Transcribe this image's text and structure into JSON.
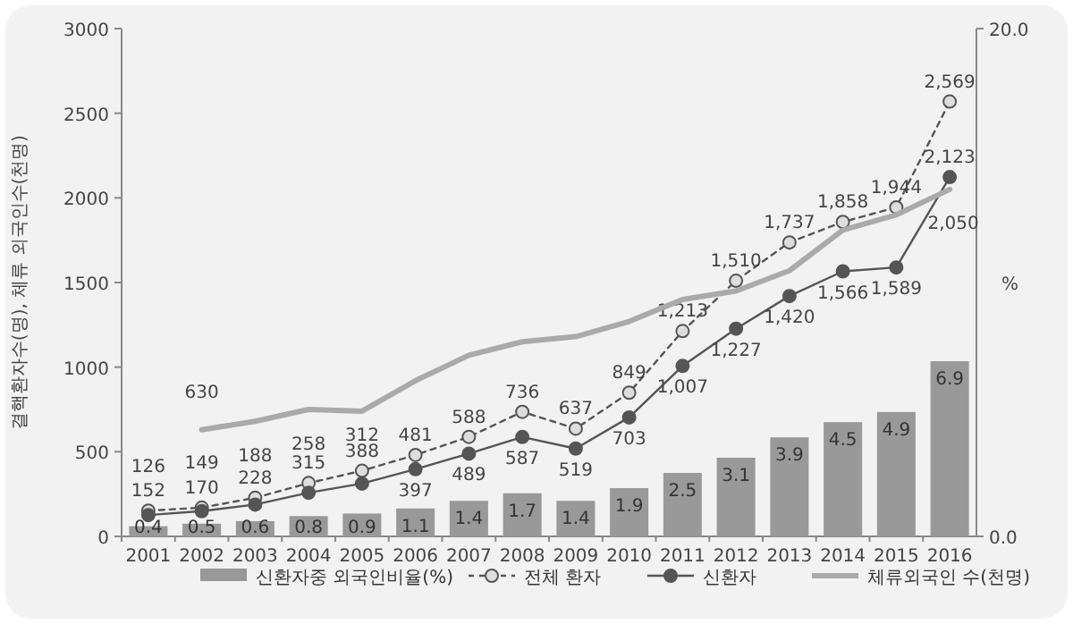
{
  "chart_data": {
    "type": "bar",
    "categories": [
      "2001",
      "2002",
      "2003",
      "2004",
      "2005",
      "2006",
      "2007",
      "2008",
      "2009",
      "2010",
      "2011",
      "2012",
      "2013",
      "2014",
      "2015",
      "2016"
    ],
    "ylabel": "결핵환자수(명), 체류 외국인수(천명)",
    "y2label": "%",
    "ylim": [
      0,
      3000
    ],
    "yticks": [
      0,
      500,
      1000,
      1500,
      2000,
      2500,
      3000
    ],
    "y2lim": [
      0,
      20
    ],
    "y2ticks": [
      {
        "value": 0,
        "label": "0.0"
      },
      {
        "value": 20,
        "label": "20.0"
      }
    ],
    "legend": "bottom",
    "series": [
      {
        "name": "신환자중 외국인비율(%)",
        "axis": "y2",
        "color": "#999999",
        "values": [
          0.4,
          0.5,
          0.6,
          0.8,
          0.9,
          1.1,
          1.4,
          1.7,
          1.4,
          1.9,
          2.5,
          3.1,
          3.9,
          4.5,
          4.9,
          6.9
        ],
        "value_labels": [
          "0.4",
          "0.5",
          "0.6",
          "0.8",
          "0.9",
          "1.1",
          "1.4",
          "1.7",
          "1.4",
          "1.9",
          "2.5",
          "3.1",
          "3.9",
          "4.5",
          "4.9",
          "6.9"
        ]
      },
      {
        "name": "전체 환자",
        "type": "line",
        "color": "#555555",
        "line_style": "dashed",
        "marker": "circle",
        "values": [
          152,
          170,
          228,
          315,
          388,
          481,
          588,
          736,
          637,
          849,
          1213,
          1510,
          1737,
          1858,
          1944,
          2569
        ],
        "value_labels": [
          "152",
          "170",
          "228",
          "315",
          "388",
          "481",
          "588",
          "736",
          "637",
          "849",
          "1,213",
          "1,510",
          "1,737",
          "1,858",
          "1,944",
          "2,569"
        ]
      },
      {
        "name": "신환자",
        "type": "line",
        "color": "#555555",
        "line_style": "solid",
        "marker": "circle",
        "values": [
          126,
          149,
          188,
          258,
          312,
          397,
          489,
          587,
          519,
          703,
          1007,
          1227,
          1420,
          1566,
          1589,
          2123
        ],
        "value_labels": [
          "126",
          "149",
          "188",
          "258",
          "312",
          "397",
          "489",
          "587",
          "519",
          "703",
          "1,007",
          "1,227",
          "1,420",
          "1,566",
          "1,589",
          "2,123"
        ]
      },
      {
        "name": "체류외국인 수(천명)",
        "type": "line",
        "color": "#aaaaaa",
        "line_style": "solid",
        "marker": "none",
        "values": [
          null,
          630,
          680,
          750,
          740,
          920,
          1070,
          1150,
          1180,
          1270,
          1400,
          1450,
          1570,
          1810,
          1900,
          2050
        ],
        "value_labels": [
          null,
          "630",
          null,
          null,
          null,
          null,
          null,
          null,
          null,
          null,
          null,
          null,
          null,
          null,
          null,
          "2,050"
        ]
      }
    ]
  }
}
